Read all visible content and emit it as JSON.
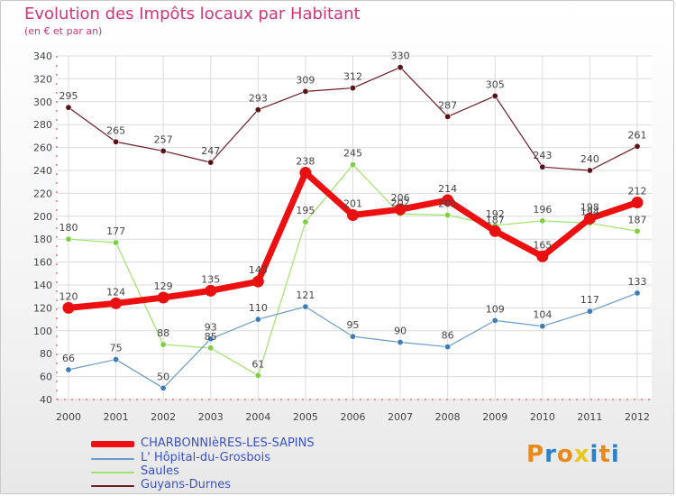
{
  "header": {
    "title": "Evolution des Impôts locaux par Habitant",
    "subtitle": "(en € et par an)"
  },
  "brand": {
    "text": "Proxiti"
  },
  "chart_data": {
    "type": "line",
    "title": "Evolution des Impôts locaux par Habitant",
    "subtitle": "(en € et par an)",
    "xlabel": "",
    "ylabel": "",
    "ylim": [
      40,
      340
    ],
    "yticks": [
      40,
      60,
      80,
      100,
      120,
      140,
      160,
      180,
      200,
      220,
      240,
      260,
      280,
      300,
      320,
      340
    ],
    "grid": true,
    "legend_position": "bottom-left",
    "x": [
      "2000",
      "2001",
      "2002",
      "2003",
      "2004",
      "2005",
      "2006",
      "2007",
      "2008",
      "2009",
      "2010",
      "2011",
      "2012"
    ],
    "series": [
      {
        "name": "Guyans-Durnes",
        "color": "#6e1a24",
        "marker": "#5a1218",
        "width": 1.2,
        "values": [
          295,
          265,
          257,
          247,
          293,
          309,
          312,
          330,
          287,
          305,
          243,
          240,
          261
        ]
      },
      {
        "name": "Saules",
        "color": "#9fe36a",
        "marker": "#7ad040",
        "width": 1.2,
        "values": [
          180,
          177,
          88,
          85,
          61,
          195,
          245,
          202,
          201,
          192,
          196,
          194,
          187
        ]
      },
      {
        "name": "L' Hôpital-du-Grosbois",
        "color": "#6a9cc8",
        "marker": "#3e7cb8",
        "width": 1.2,
        "values": [
          66,
          75,
          50,
          93,
          110,
          121,
          95,
          90,
          86,
          109,
          104,
          117,
          133
        ]
      },
      {
        "name": "CHARBONNIèRES-LES-SAPINS",
        "color": "#ee1010",
        "marker": "#e81010",
        "width": 7,
        "values": [
          120,
          124,
          129,
          135,
          143,
          238,
          201,
          206,
          214,
          187,
          165,
          198,
          212
        ]
      }
    ]
  }
}
